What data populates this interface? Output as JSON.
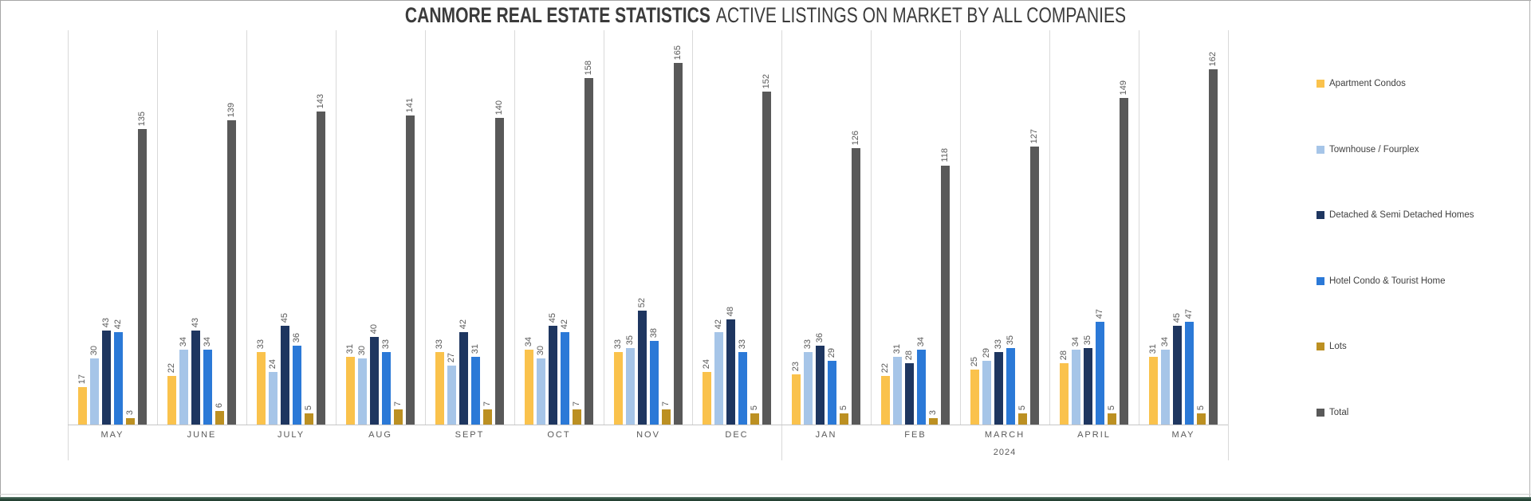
{
  "title": {
    "bold": "CANMORE REAL ESTATE STATISTICS",
    "regular": "ACTIVE LISTINGS ON MARKET BY ALL COMPANIES"
  },
  "chart_data": {
    "type": "bar",
    "title": "CANMORE REAL ESTATE STATISTICS ACTIVE LISTINGS ON MARKET BY ALL COMPANIES",
    "categories": [
      "MAY",
      "JUNE",
      "JULY",
      "AUG",
      "SEPT",
      "OCT",
      "NOV",
      "DEC",
      "JAN",
      "FEB",
      "MARCH",
      "APRIL",
      "MAY"
    ],
    "year_sections": [
      {
        "label": "",
        "start": 0,
        "end": 7
      },
      {
        "label": "2024",
        "start": 8,
        "end": 12
      }
    ],
    "series": [
      {
        "name": "Apartment Condos",
        "color": "#FAC24C",
        "values": [
          17,
          22,
          33,
          31,
          33,
          34,
          33,
          24,
          23,
          22,
          25,
          28,
          31
        ]
      },
      {
        "name": "Townhouse / Fourplex",
        "color": "#A6C5E8",
        "values": [
          30,
          34,
          24,
          30,
          27,
          30,
          35,
          42,
          33,
          31,
          29,
          34,
          34
        ]
      },
      {
        "name": "Detached & Semi Detached Homes",
        "color": "#1E3660",
        "values": [
          43,
          43,
          45,
          40,
          42,
          45,
          52,
          48,
          36,
          28,
          33,
          35,
          45
        ]
      },
      {
        "name": "Hotel Condo & Tourist Home",
        "color": "#2B79D7",
        "values": [
          42,
          34,
          36,
          33,
          31,
          42,
          38,
          33,
          29,
          34,
          35,
          47,
          47
        ]
      },
      {
        "name": "Lots",
        "color": "#BC9022",
        "values": [
          3,
          6,
          5,
          7,
          7,
          7,
          7,
          5,
          5,
          3,
          5,
          5,
          5
        ]
      },
      {
        "name": "Total",
        "color": "#595959",
        "values": [
          135,
          139,
          143,
          141,
          140,
          158,
          165,
          152,
          126,
          118,
          127,
          149,
          162
        ]
      }
    ],
    "xlabel": "",
    "ylabel": "",
    "ylim": [
      0,
      180
    ],
    "grid": "vertical category separators only",
    "data_labels": "rotated 90deg above each bar",
    "legend_position": "right"
  }
}
